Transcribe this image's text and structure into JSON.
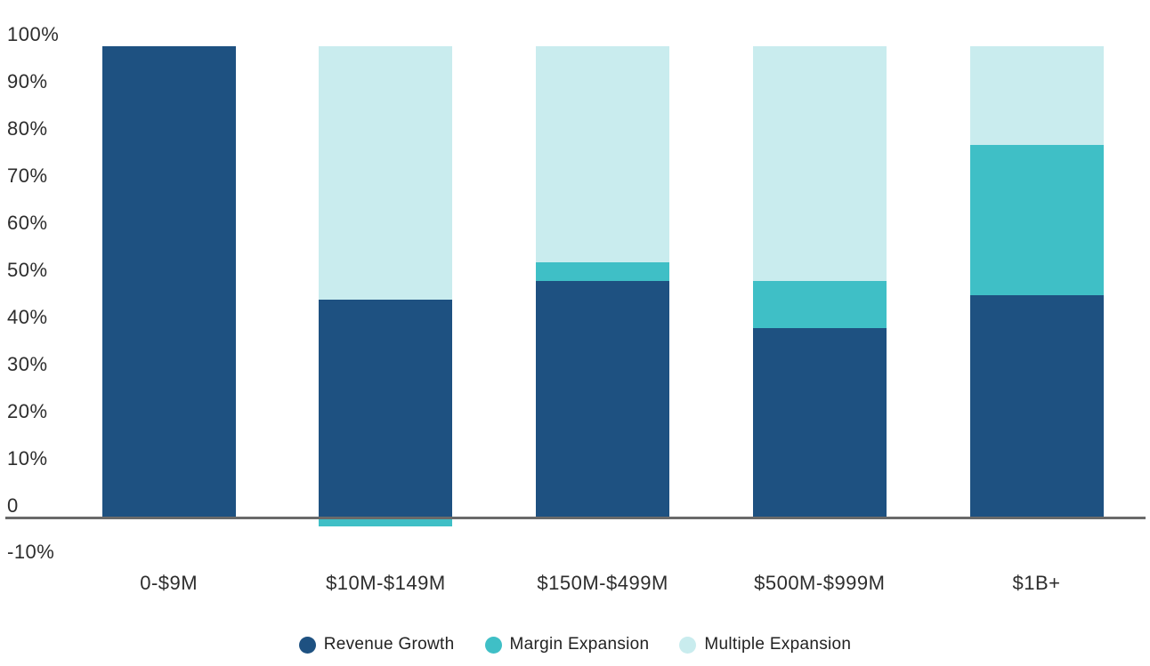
{
  "chart_data": {
    "type": "bar",
    "stacked": true,
    "title": "",
    "categories": [
      "0-$9M",
      "$10M-$149M",
      "$150M-$499M",
      "$500M-$999M",
      "$1B+"
    ],
    "series": [
      {
        "name": "Revenue Growth",
        "color": "#1E5181",
        "values": [
          100,
          46,
          50,
          40,
          47
        ]
      },
      {
        "name": "Margin Expansion",
        "color": "#3FBFC6",
        "values": [
          0,
          -2,
          4,
          10,
          32
        ]
      },
      {
        "name": "Multiple Expansion",
        "color": "#C9ECEE",
        "values": [
          0,
          54,
          46,
          50,
          21
        ]
      }
    ],
    "y_axis": {
      "ticks": [
        {
          "label": "100%",
          "value": 100
        },
        {
          "label": "90%",
          "value": 90
        },
        {
          "label": "80%",
          "value": 80
        },
        {
          "label": "70%",
          "value": 70
        },
        {
          "label": "60%",
          "value": 60
        },
        {
          "label": "50%",
          "value": 50
        },
        {
          "label": "40%",
          "value": 40
        },
        {
          "label": "30%",
          "value": 30
        },
        {
          "label": "20%",
          "value": 20
        },
        {
          "label": "10%",
          "value": 10
        },
        {
          "label": "0",
          "value": 0
        },
        {
          "label": "-10%",
          "value": -10
        }
      ],
      "ylim": [
        -10,
        100
      ]
    },
    "legend": {
      "position": "bottom"
    },
    "grid": false,
    "colors": {
      "axis_line": "#6A6A6A",
      "text": "#2D2D2D",
      "background": "#FFFFFF"
    }
  }
}
